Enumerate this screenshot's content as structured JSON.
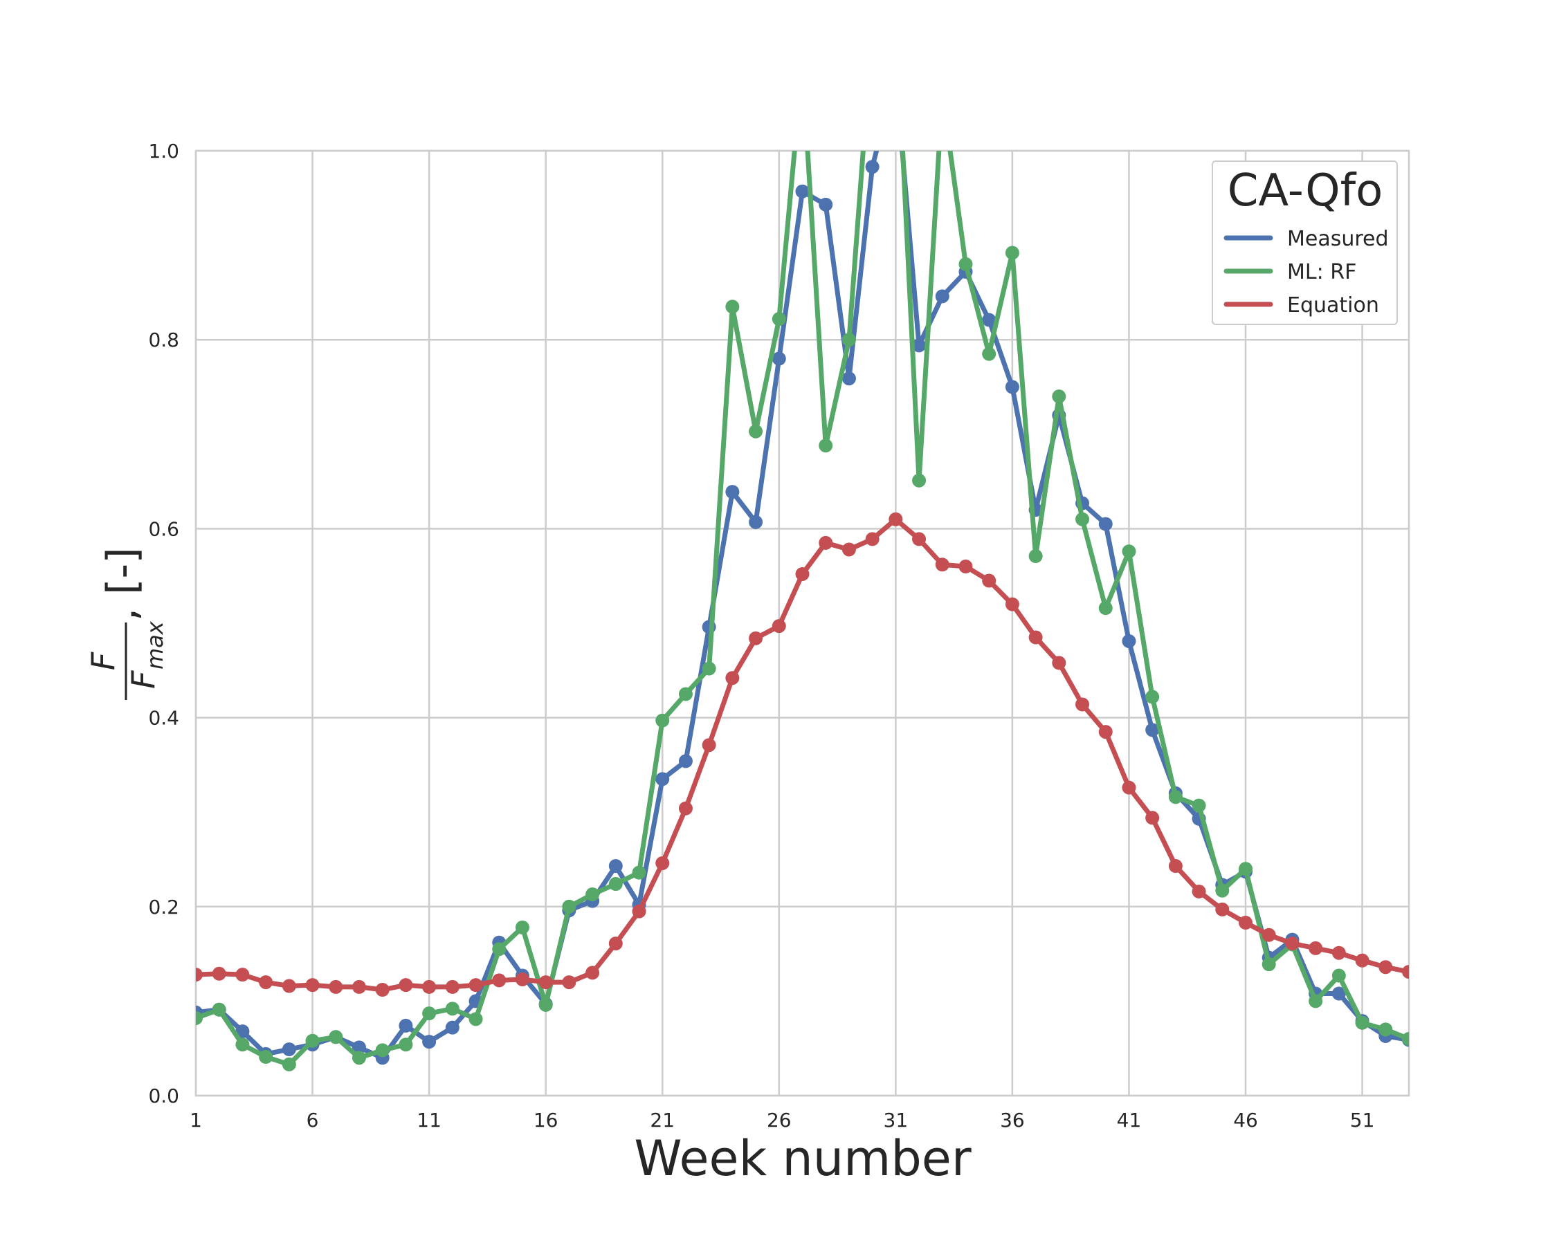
{
  "chart_data": {
    "type": "line",
    "xlabel": "Week number",
    "ylabel": {
      "numerator": "F",
      "denominator_main": "F",
      "denominator_sub": "max",
      "suffix": ", [-]"
    },
    "xlim": [
      1,
      53
    ],
    "ylim": [
      0,
      1.0
    ],
    "x_ticks": [
      1,
      6,
      11,
      16,
      21,
      26,
      31,
      36,
      41,
      46,
      51
    ],
    "y_ticks": [
      0.0,
      0.2,
      0.4,
      0.6,
      0.8,
      1.0
    ],
    "y_tick_labels": [
      "0.0",
      "0.2",
      "0.4",
      "0.6",
      "0.8",
      "1.0"
    ],
    "grid": true,
    "legend": {
      "title": "CA-Qfo",
      "placement": "top-right"
    },
    "x": [
      1,
      2,
      3,
      4,
      5,
      6,
      7,
      8,
      9,
      10,
      11,
      12,
      13,
      14,
      15,
      16,
      17,
      18,
      19,
      20,
      21,
      22,
      23,
      24,
      25,
      26,
      27,
      28,
      29,
      30,
      31,
      32,
      33,
      34,
      35,
      36,
      37,
      38,
      39,
      40,
      41,
      42,
      43,
      44,
      45,
      46,
      47,
      48,
      49,
      50,
      51,
      52,
      53
    ],
    "series": [
      {
        "name": "Measured",
        "color": "#4c72b0",
        "values": [
          0.088,
          0.091,
          0.068,
          0.044,
          0.049,
          0.054,
          0.062,
          0.051,
          0.04,
          0.074,
          0.057,
          0.072,
          0.1,
          0.162,
          0.127,
          0.097,
          0.196,
          0.206,
          0.243,
          0.202,
          0.335,
          0.354,
          0.496,
          0.639,
          0.607,
          0.78,
          0.957,
          0.943,
          0.759,
          0.983,
          1.08,
          0.794,
          0.846,
          0.872,
          0.821,
          0.75,
          0.62,
          0.72,
          0.627,
          0.605,
          0.481,
          0.387,
          0.32,
          0.293,
          0.223,
          0.237,
          0.146,
          0.165,
          0.108,
          0.108,
          0.079,
          0.063,
          0.059
        ]
      },
      {
        "name": "ML: RF",
        "color": "#55a868",
        "values": [
          0.082,
          0.091,
          0.054,
          0.041,
          0.033,
          0.058,
          0.062,
          0.04,
          0.048,
          0.054,
          0.087,
          0.092,
          0.081,
          0.155,
          0.178,
          0.096,
          0.2,
          0.213,
          0.224,
          0.236,
          0.397,
          0.425,
          0.452,
          0.835,
          0.703,
          0.822,
          1.09,
          0.688,
          0.8,
          1.13,
          1.15,
          0.651,
          1.06,
          0.88,
          0.785,
          0.892,
          0.571,
          0.74,
          0.61,
          0.516,
          0.576,
          0.422,
          0.316,
          0.307,
          0.217,
          0.24,
          0.139,
          0.16,
          0.1,
          0.127,
          0.077,
          0.07,
          0.06
        ]
      },
      {
        "name": "Equation",
        "color": "#c44e52",
        "values": [
          0.128,
          0.129,
          0.128,
          0.12,
          0.116,
          0.117,
          0.115,
          0.115,
          0.112,
          0.117,
          0.115,
          0.115,
          0.117,
          0.122,
          0.123,
          0.12,
          0.12,
          0.13,
          0.161,
          0.195,
          0.246,
          0.304,
          0.371,
          0.442,
          0.484,
          0.497,
          0.552,
          0.585,
          0.578,
          0.589,
          0.61,
          0.589,
          0.562,
          0.56,
          0.545,
          0.52,
          0.485,
          0.458,
          0.414,
          0.385,
          0.326,
          0.294,
          0.243,
          0.216,
          0.197,
          0.183,
          0.17,
          0.161,
          0.156,
          0.151,
          0.143,
          0.136,
          0.131
        ]
      }
    ]
  }
}
